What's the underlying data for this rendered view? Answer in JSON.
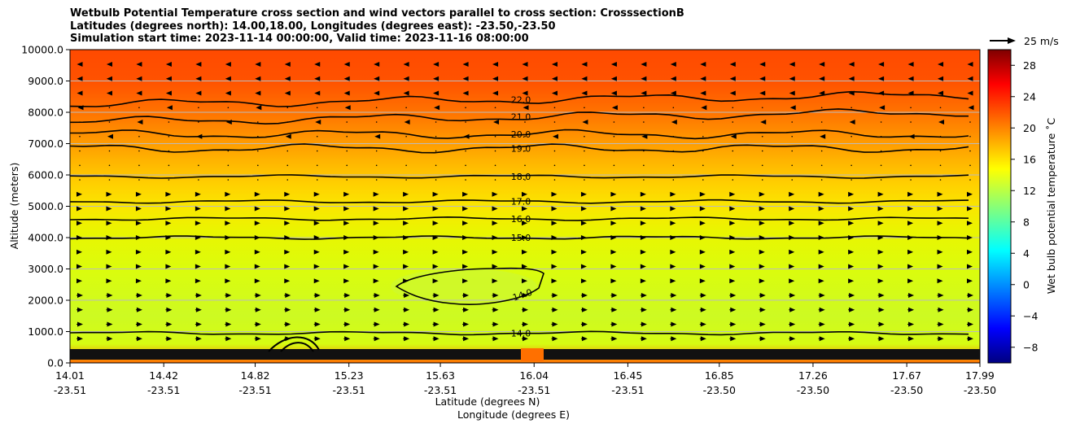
{
  "title_lines": [
    "Wetbulb Potential Temperature cross section and wind vectors parallel to cross section: CrosssectionB",
    "Latitudes (degrees north): 14.00,18.00, Longitudes (degrees east): -23.50,-23.50",
    "Simulation start time: 2023-11-14 00:00:00, Valid time: 2023-11-16 08:00:00"
  ],
  "chart_data": {
    "type": "contour",
    "ylabel": "Altitude (meters)",
    "xlabel_lat": "Latitude (degrees N)",
    "xlabel_lon": "Longitude (degrees E)",
    "colorbar_label": "Wet bulb potential temperature ˚C",
    "colormap": "jet",
    "clim": [
      -10,
      30
    ],
    "ylim": [
      0,
      10000
    ],
    "grid": "horizontal",
    "y_ticks": [
      "0.0",
      "1000.0",
      "2000.0",
      "3000.0",
      "4000.0",
      "5000.0",
      "6000.0",
      "7000.0",
      "8000.0",
      "9000.0",
      "10000.0"
    ],
    "x_ticks": [
      {
        "lat": "14.01",
        "lon": "-23.51"
      },
      {
        "lat": "14.42",
        "lon": "-23.51"
      },
      {
        "lat": "14.82",
        "lon": "-23.51"
      },
      {
        "lat": "15.23",
        "lon": "-23.51"
      },
      {
        "lat": "15.63",
        "lon": "-23.51"
      },
      {
        "lat": "16.04",
        "lon": "-23.51"
      },
      {
        "lat": "16.45",
        "lon": "-23.51"
      },
      {
        "lat": "16.85",
        "lon": "-23.50"
      },
      {
        "lat": "17.26",
        "lon": "-23.50"
      },
      {
        "lat": "17.67",
        "lon": "-23.50"
      },
      {
        "lat": "17.99",
        "lon": "-23.50"
      }
    ],
    "colorbar_ticks": [
      "28",
      "24",
      "20",
      "16",
      "12",
      "8",
      "4",
      "0",
      "−4",
      "−8"
    ],
    "quiver_key": "25 m/s",
    "contour_levels": [
      {
        "label": "22.0",
        "value": 22,
        "alt_m": 8250
      },
      {
        "label": "21.0",
        "value": 21,
        "alt_m": 7700
      },
      {
        "label": "20.0",
        "value": 20,
        "alt_m": 7300
      },
      {
        "label": "19.0",
        "value": 19,
        "alt_m": 6850
      },
      {
        "label": "18.0",
        "value": 18,
        "alt_m": 5950
      },
      {
        "label": "17.0",
        "value": 17,
        "alt_m": 5150
      },
      {
        "label": "16.0",
        "value": 16,
        "alt_m": 4600
      },
      {
        "label": "15.0",
        "value": 15,
        "alt_m": 4000
      },
      {
        "label": "14.0",
        "value": 14,
        "alt_m": 2400
      },
      {
        "label": "14.0",
        "value": 14,
        "alt_m": 950
      }
    ]
  }
}
